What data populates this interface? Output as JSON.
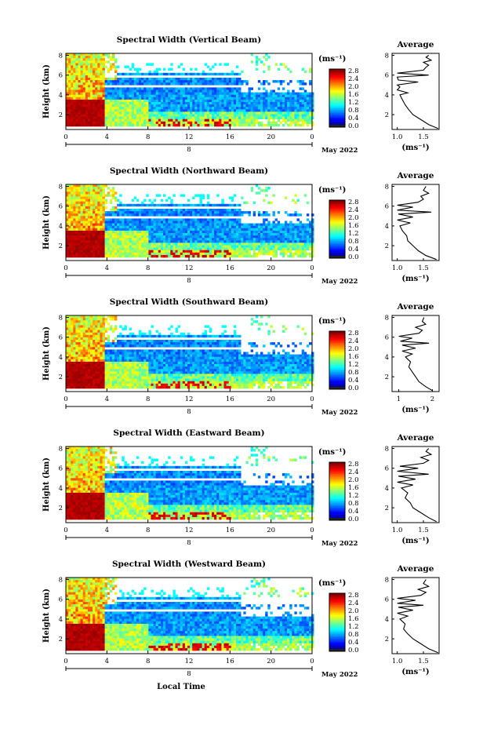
{
  "common": {
    "ylabel": "Height (km)",
    "x_ticks": [
      "0",
      "4",
      "8",
      "12",
      "16",
      "20",
      "0"
    ],
    "y_ticks": [
      "2",
      "4",
      "6",
      "8"
    ],
    "date_label": "May 2022",
    "day_label": "8",
    "colorbar_unit": "(ms⁻¹)",
    "avg_title": "Average",
    "avg_unit": "(ms⁻¹)",
    "avg_y_ticks": [
      "2",
      "4",
      "6",
      "8"
    ],
    "xlabel": "Local Time"
  },
  "chart_data": [
    {
      "type": "heatmap",
      "title": "Spectral Width (Vertical Beam)",
      "xlim": [
        0,
        24
      ],
      "ylim": [
        0.5,
        8.2
      ],
      "colorbar": {
        "ticks": [
          "0.0",
          "0.4",
          "0.8",
          "1.2",
          "1.6",
          "2.0",
          "2.4",
          "2.8"
        ],
        "range": [
          0,
          2.8
        ]
      },
      "avg_profile": {
        "xlim": [
          0.9,
          1.8
        ],
        "x_ticks": [
          "1.0",
          "1.5"
        ],
        "points": [
          [
            1.78,
            0.6
          ],
          [
            1.6,
            1.0
          ],
          [
            1.45,
            1.5
          ],
          [
            1.3,
            2.0
          ],
          [
            1.22,
            2.5
          ],
          [
            1.15,
            3.0
          ],
          [
            1.1,
            3.5
          ],
          [
            1.05,
            4.0
          ],
          [
            1.2,
            4.2
          ],
          [
            1.0,
            4.5
          ],
          [
            1.05,
            4.8
          ],
          [
            1.0,
            5.0
          ],
          [
            1.4,
            5.3
          ],
          [
            1.02,
            5.5
          ],
          [
            1.0,
            5.8
          ],
          [
            1.6,
            6.0
          ],
          [
            1.0,
            6.2
          ],
          [
            1.5,
            6.5
          ],
          [
            1.55,
            6.8
          ],
          [
            1.6,
            7.0
          ],
          [
            1.5,
            7.3
          ],
          [
            1.65,
            7.5
          ],
          [
            1.55,
            7.8
          ],
          [
            1.6,
            8.0
          ]
        ]
      }
    },
    {
      "type": "heatmap",
      "title": "Spectral Width (Northward Beam)",
      "xlim": [
        0,
        24
      ],
      "ylim": [
        0.5,
        8.2
      ],
      "colorbar": {
        "ticks": [
          "0.0",
          "0.4",
          "0.8",
          "1.2",
          "1.6",
          "2.0",
          "2.4",
          "2.8"
        ],
        "range": [
          0,
          2.8
        ]
      },
      "avg_profile": {
        "xlim": [
          0.9,
          1.8
        ],
        "x_ticks": [
          "1.0",
          "1.5"
        ],
        "points": [
          [
            1.75,
            0.6
          ],
          [
            1.55,
            1.0
          ],
          [
            1.4,
            1.5
          ],
          [
            1.3,
            2.0
          ],
          [
            1.2,
            2.5
          ],
          [
            1.18,
            3.0
          ],
          [
            1.1,
            3.5
          ],
          [
            1.05,
            4.0
          ],
          [
            1.25,
            4.3
          ],
          [
            1.0,
            4.6
          ],
          [
            1.3,
            4.9
          ],
          [
            1.02,
            5.2
          ],
          [
            1.65,
            5.4
          ],
          [
            1.0,
            5.6
          ],
          [
            1.3,
            5.9
          ],
          [
            1.0,
            6.1
          ],
          [
            1.4,
            6.4
          ],
          [
            1.5,
            6.7
          ],
          [
            1.45,
            7.0
          ],
          [
            1.6,
            7.3
          ],
          [
            1.5,
            7.6
          ],
          [
            1.55,
            8.0
          ]
        ]
      }
    },
    {
      "type": "heatmap",
      "title": "Spectral Width (Southward Beam)",
      "xlim": [
        0,
        24
      ],
      "ylim": [
        0.5,
        8.2
      ],
      "colorbar": {
        "ticks": [
          "0.0",
          "0.4",
          "0.8",
          "1.2",
          "1.6",
          "2.0",
          "2.4",
          "2.8"
        ],
        "range": [
          0,
          2.8
        ]
      },
      "avg_profile": {
        "xlim": [
          0.8,
          2.2
        ],
        "x_ticks": [
          "1",
          "2"
        ],
        "points": [
          [
            2.0,
            0.6
          ],
          [
            1.8,
            1.0
          ],
          [
            1.6,
            1.5
          ],
          [
            1.5,
            2.0
          ],
          [
            1.4,
            2.5
          ],
          [
            1.3,
            3.0
          ],
          [
            1.35,
            3.5
          ],
          [
            1.2,
            4.0
          ],
          [
            1.4,
            4.3
          ],
          [
            1.1,
            4.6
          ],
          [
            1.5,
            4.9
          ],
          [
            1.1,
            5.2
          ],
          [
            1.9,
            5.4
          ],
          [
            1.05,
            5.6
          ],
          [
            1.4,
            5.9
          ],
          [
            1.0,
            6.1
          ],
          [
            1.6,
            6.4
          ],
          [
            1.7,
            6.7
          ],
          [
            1.5,
            7.0
          ],
          [
            1.8,
            7.3
          ],
          [
            1.7,
            7.6
          ],
          [
            1.75,
            8.0
          ]
        ]
      }
    },
    {
      "type": "heatmap",
      "title": "Spectral Width (Eastward Beam)",
      "xlim": [
        0,
        24
      ],
      "ylim": [
        0.5,
        8.2
      ],
      "colorbar": {
        "ticks": [
          "0.0",
          "0.4",
          "0.8",
          "1.2",
          "1.6",
          "2.0",
          "2.4",
          "2.8"
        ],
        "range": [
          0,
          2.8
        ]
      },
      "avg_profile": {
        "xlim": [
          0.9,
          1.8
        ],
        "x_ticks": [
          "1.0",
          "1.5"
        ],
        "points": [
          [
            1.75,
            0.6
          ],
          [
            1.6,
            1.0
          ],
          [
            1.45,
            1.5
          ],
          [
            1.3,
            2.0
          ],
          [
            1.25,
            2.5
          ],
          [
            1.15,
            3.0
          ],
          [
            1.2,
            3.5
          ],
          [
            1.08,
            4.0
          ],
          [
            1.3,
            4.3
          ],
          [
            1.0,
            4.6
          ],
          [
            1.35,
            4.9
          ],
          [
            1.02,
            5.2
          ],
          [
            1.6,
            5.4
          ],
          [
            1.0,
            5.7
          ],
          [
            1.4,
            6.0
          ],
          [
            1.05,
            6.2
          ],
          [
            1.5,
            6.5
          ],
          [
            1.6,
            6.8
          ],
          [
            1.45,
            7.1
          ],
          [
            1.65,
            7.4
          ],
          [
            1.55,
            7.7
          ],
          [
            1.6,
            8.0
          ]
        ]
      }
    },
    {
      "type": "heatmap",
      "title": "Spectral Width (Westward Beam)",
      "xlim": [
        0,
        24
      ],
      "ylim": [
        0.5,
        8.2
      ],
      "colorbar": {
        "ticks": [
          "0.0",
          "0.4",
          "0.8",
          "1.2",
          "1.6",
          "2.0",
          "2.4",
          "2.8"
        ],
        "range": [
          0,
          2.8
        ]
      },
      "avg_profile": {
        "xlim": [
          0.9,
          1.8
        ],
        "x_ticks": [
          "1.0",
          "1.5"
        ],
        "points": [
          [
            1.78,
            0.6
          ],
          [
            1.6,
            1.0
          ],
          [
            1.45,
            1.5
          ],
          [
            1.3,
            2.0
          ],
          [
            1.2,
            2.5
          ],
          [
            1.12,
            3.0
          ],
          [
            1.15,
            3.5
          ],
          [
            1.05,
            4.0
          ],
          [
            1.2,
            4.3
          ],
          [
            1.0,
            4.6
          ],
          [
            1.3,
            4.9
          ],
          [
            1.02,
            5.2
          ],
          [
            1.5,
            5.4
          ],
          [
            1.0,
            5.6
          ],
          [
            1.35,
            5.9
          ],
          [
            1.0,
            6.1
          ],
          [
            1.45,
            6.4
          ],
          [
            1.55,
            6.7
          ],
          [
            1.4,
            7.0
          ],
          [
            1.6,
            7.3
          ],
          [
            1.5,
            7.6
          ],
          [
            1.55,
            8.0
          ]
        ]
      }
    }
  ]
}
